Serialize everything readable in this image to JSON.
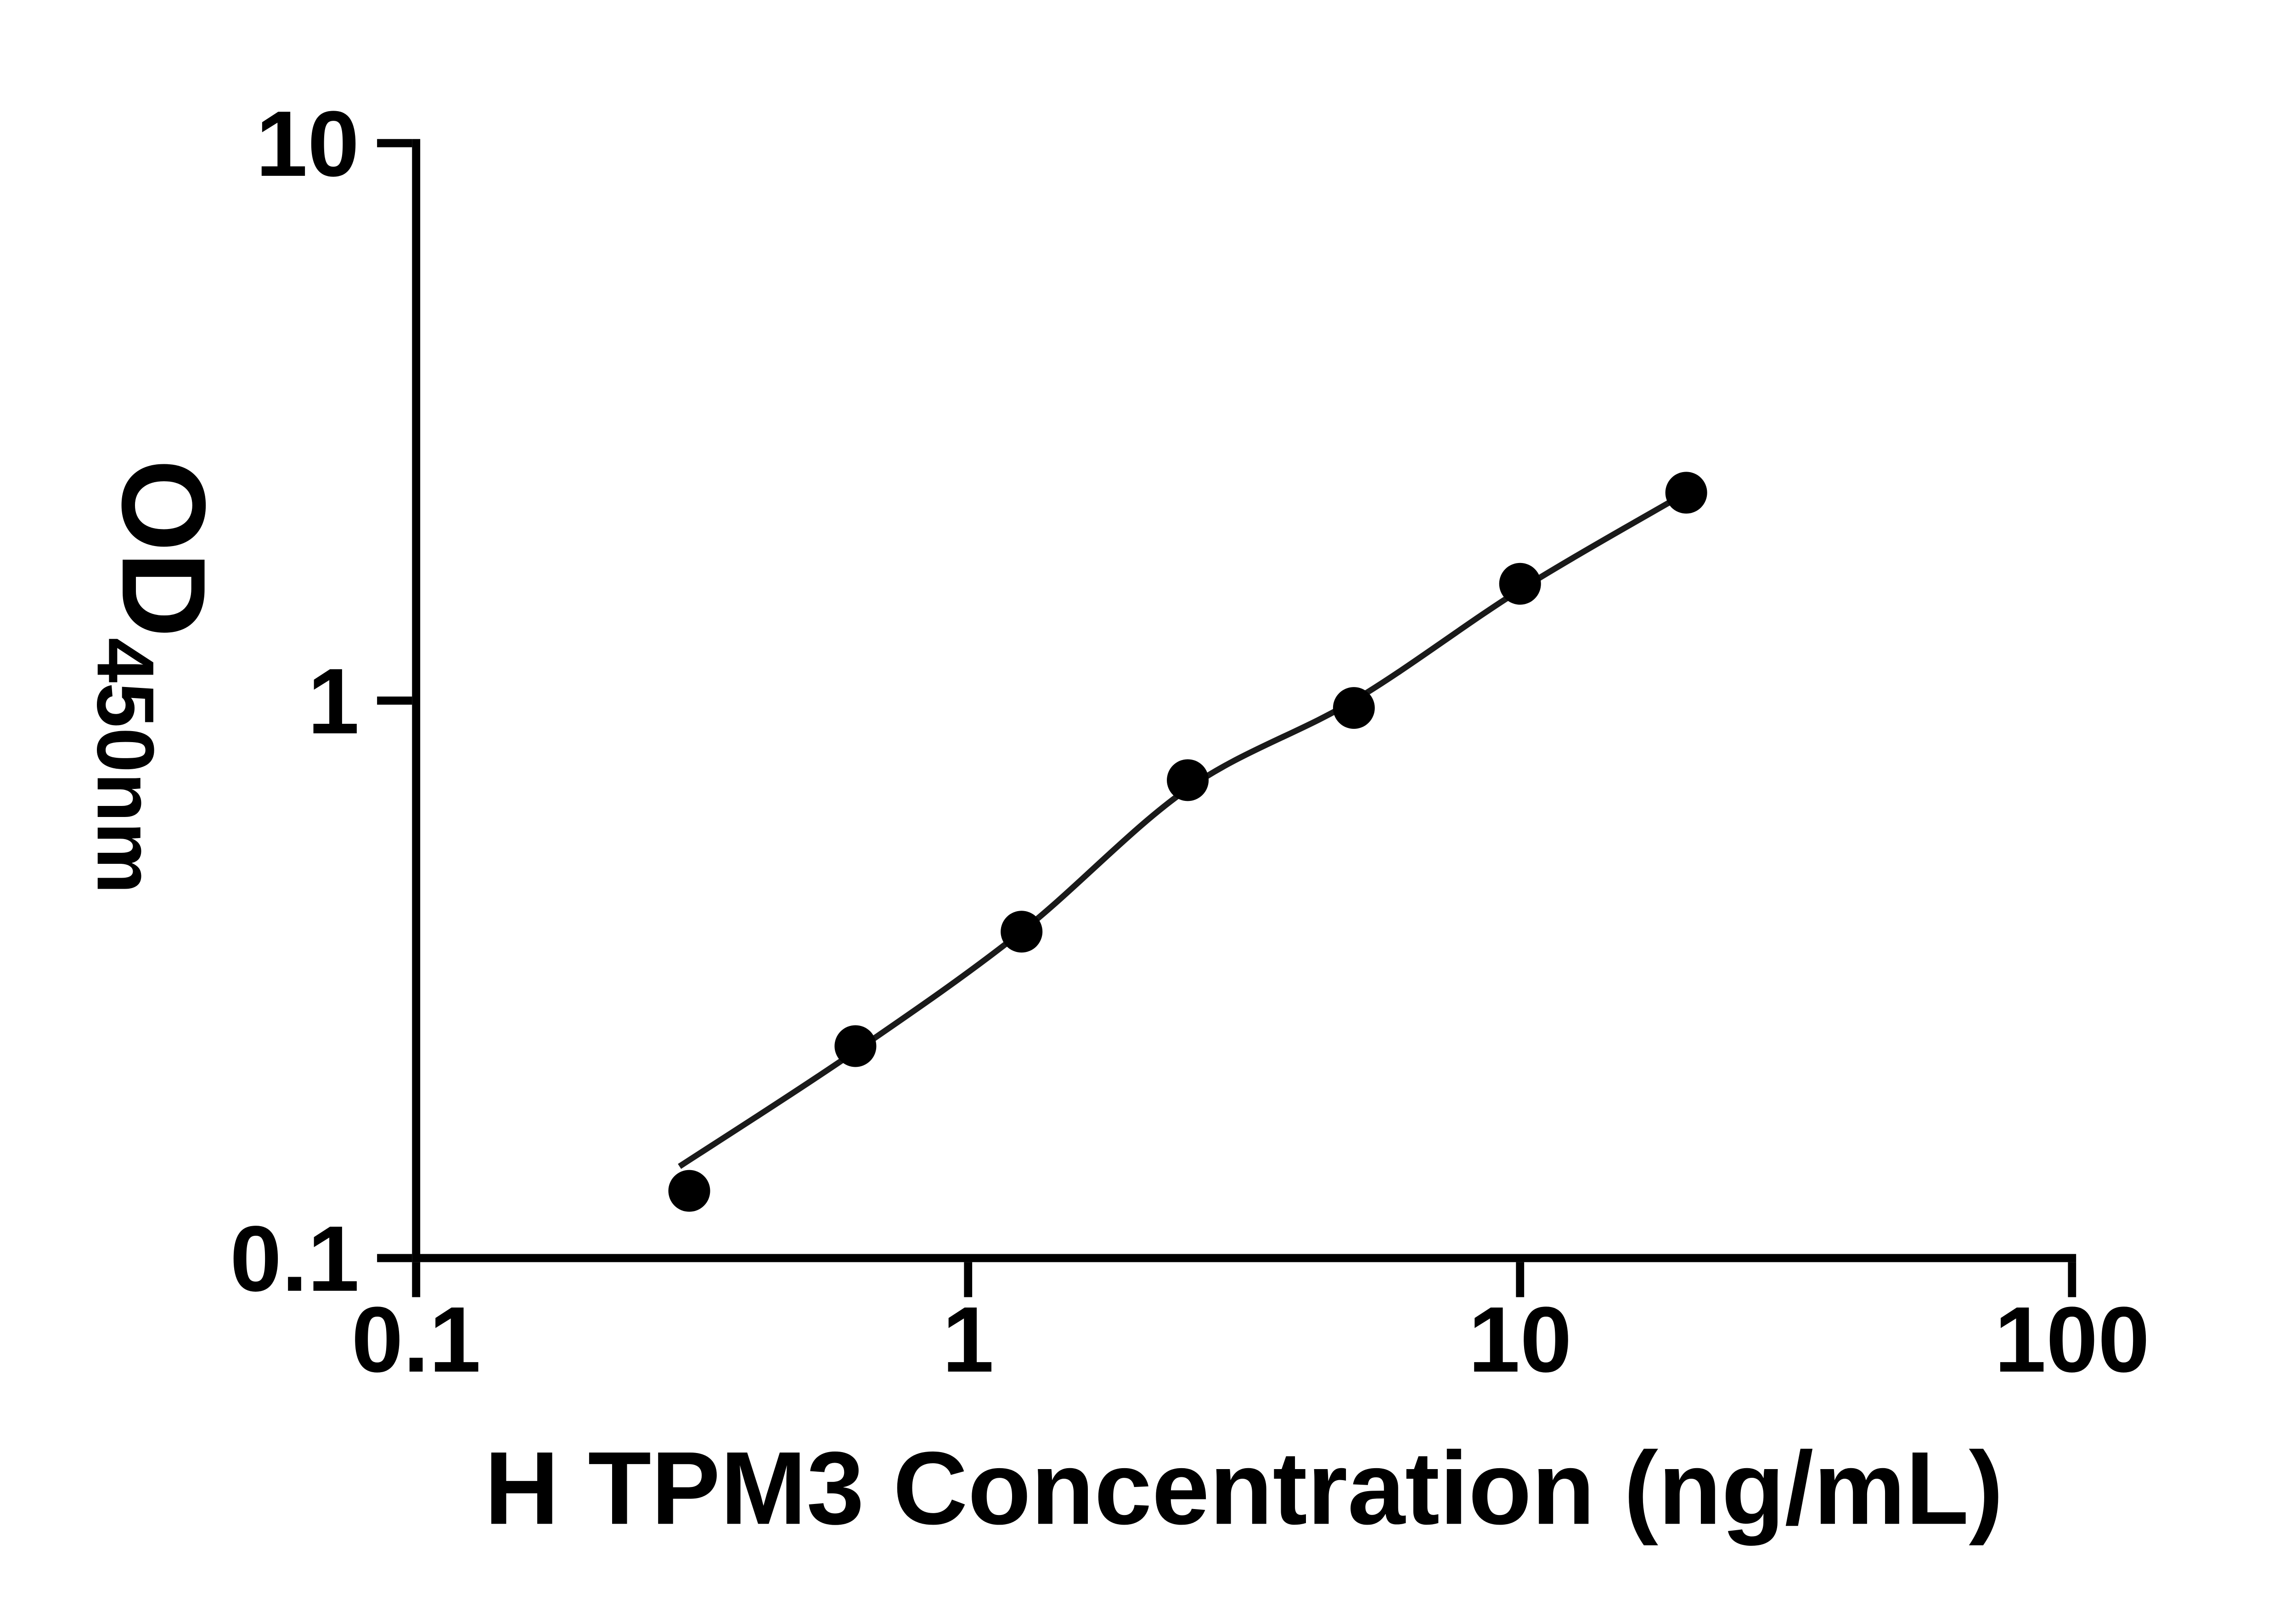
{
  "chart_data": {
    "type": "scatter",
    "title": "",
    "xlabel": "H TPM3 Concentration (ng/mL)",
    "ylabel_main": "OD",
    "ylabel_sub": "450nm",
    "x_scale": "log",
    "y_scale": "log",
    "xlim": [
      0.1,
      100
    ],
    "ylim": [
      0.1,
      10
    ],
    "x_ticks": [
      0.1,
      1,
      10,
      100
    ],
    "x_tick_labels": [
      "0.1",
      "1",
      "10",
      "100"
    ],
    "y_ticks": [
      0.1,
      1,
      10
    ],
    "y_tick_labels": [
      "0.1",
      "1",
      "10"
    ],
    "grid": false,
    "legend": "none",
    "series": [
      {
        "name": "standard-curve-points",
        "x": [
          0.3125,
          0.625,
          1.25,
          2.5,
          5,
          10,
          20
        ],
        "y": [
          0.132,
          0.24,
          0.385,
          0.72,
          0.97,
          1.62,
          2.36
        ],
        "marker": "circle",
        "marker_color": "#000000",
        "marker_radius": 46
      }
    ],
    "fit_line": {
      "name": "fitted-curve",
      "x": [
        0.3,
        0.625,
        1.25,
        2.5,
        5,
        10,
        20
      ],
      "y": [
        0.146,
        0.235,
        0.385,
        0.695,
        1.0,
        1.58,
        2.36
      ],
      "color": "#1a1a1a",
      "width": 13
    },
    "colors": {
      "axis": "#000000",
      "background": "#ffffff"
    }
  }
}
